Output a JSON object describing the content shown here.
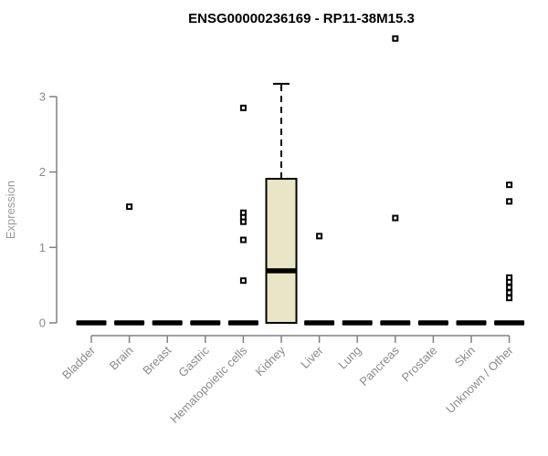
{
  "chart_data": {
    "type": "boxplot",
    "title": "ENSG00000236169 - RP11-38M15.3",
    "xlabel": "",
    "ylabel": "Expression",
    "ylim": [
      0,
      3.85
    ],
    "yticks": [
      0,
      1,
      2,
      3
    ],
    "grid": false,
    "legend": false,
    "box_fill": "#ebe5c8",
    "box_border": "#000000",
    "axis_color": "#808080",
    "label_color": "#8a8a8a",
    "outlier_marker": "open-square",
    "categories": [
      "Bladder",
      "Brain",
      "Breast",
      "Gastric",
      "Hematopoietic cells",
      "Kidney",
      "Liver",
      "Lung",
      "Pancreas",
      "Prostate",
      "Skin",
      "Unknown / Other"
    ],
    "series": [
      {
        "category": "Bladder",
        "whisker_low": 0,
        "q1": 0,
        "median": 0,
        "q3": 0,
        "whisker_high": 0,
        "outliers": []
      },
      {
        "category": "Brain",
        "whisker_low": 0,
        "q1": 0,
        "median": 0,
        "q3": 0,
        "whisker_high": 0,
        "outliers": [
          1.54
        ]
      },
      {
        "category": "Breast",
        "whisker_low": 0,
        "q1": 0,
        "median": 0,
        "q3": 0,
        "whisker_high": 0,
        "outliers": []
      },
      {
        "category": "Gastric",
        "whisker_low": 0,
        "q1": 0,
        "median": 0,
        "q3": 0,
        "whisker_high": 0,
        "outliers": []
      },
      {
        "category": "Hematopoietic cells",
        "whisker_low": 0,
        "q1": 0,
        "median": 0,
        "q3": 0,
        "whisker_high": 0,
        "outliers": [
          2.85,
          1.46,
          1.4,
          1.34,
          1.1,
          0.56
        ]
      },
      {
        "category": "Kidney",
        "whisker_low": 0,
        "q1": 0,
        "median": 0.69,
        "q3": 1.91,
        "whisker_high": 3.17,
        "outliers": []
      },
      {
        "category": "Liver",
        "whisker_low": 0,
        "q1": 0,
        "median": 0,
        "q3": 0,
        "whisker_high": 0,
        "outliers": [
          1.15
        ]
      },
      {
        "category": "Lung",
        "whisker_low": 0,
        "q1": 0,
        "median": 0,
        "q3": 0,
        "whisker_high": 0,
        "outliers": []
      },
      {
        "category": "Pancreas",
        "whisker_low": 0,
        "q1": 0,
        "median": 0,
        "q3": 0,
        "whisker_high": 0,
        "outliers": [
          3.77,
          1.39
        ]
      },
      {
        "category": "Prostate",
        "whisker_low": 0,
        "q1": 0,
        "median": 0,
        "q3": 0,
        "whisker_high": 0,
        "outliers": []
      },
      {
        "category": "Skin",
        "whisker_low": 0,
        "q1": 0,
        "median": 0,
        "q3": 0,
        "whisker_high": 0,
        "outliers": []
      },
      {
        "category": "Unknown / Other",
        "whisker_low": 0,
        "q1": 0,
        "median": 0,
        "q3": 0,
        "whisker_high": 0,
        "outliers": [
          1.83,
          1.61,
          0.6,
          0.54,
          0.47,
          0.4,
          0.33
        ]
      }
    ]
  }
}
